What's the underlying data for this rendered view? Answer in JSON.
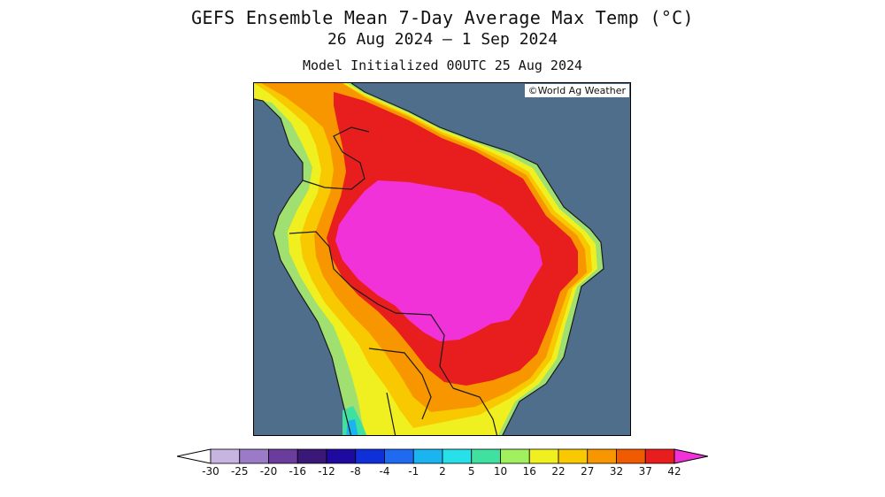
{
  "header": {
    "title": "GEFS Ensemble Mean 7-Day Average Max Temp (°C)",
    "date_range": "26 Aug 2024 – 1 Sep 2024",
    "init": "Model Initialized 00UTC 25 Aug 2024"
  },
  "map": {
    "credit": "©World Ag Weather",
    "ocean_color": "#4f6e8c",
    "border_color": "#1a1a1a"
  },
  "legend": {
    "ticks": [
      "-30",
      "-25",
      "-20",
      "-16",
      "-12",
      "-8",
      "-4",
      "-1",
      "2",
      "5",
      "10",
      "16",
      "22",
      "27",
      "32",
      "37",
      "42"
    ],
    "colors": [
      "#ffffff",
      "#c8b4e0",
      "#9b7ac8",
      "#6a3c9c",
      "#3a1878",
      "#1f0aa0",
      "#0f2fd8",
      "#1e6af0",
      "#1ab4f0",
      "#28e0e8",
      "#40e0a0",
      "#a0f060",
      "#f0f020",
      "#f8c800",
      "#f89600",
      "#f05a00",
      "#e81e1e",
      "#f032d8"
    ],
    "left_arrow_color": "#ffffff",
    "right_arrow_color": "#f032d8"
  }
}
